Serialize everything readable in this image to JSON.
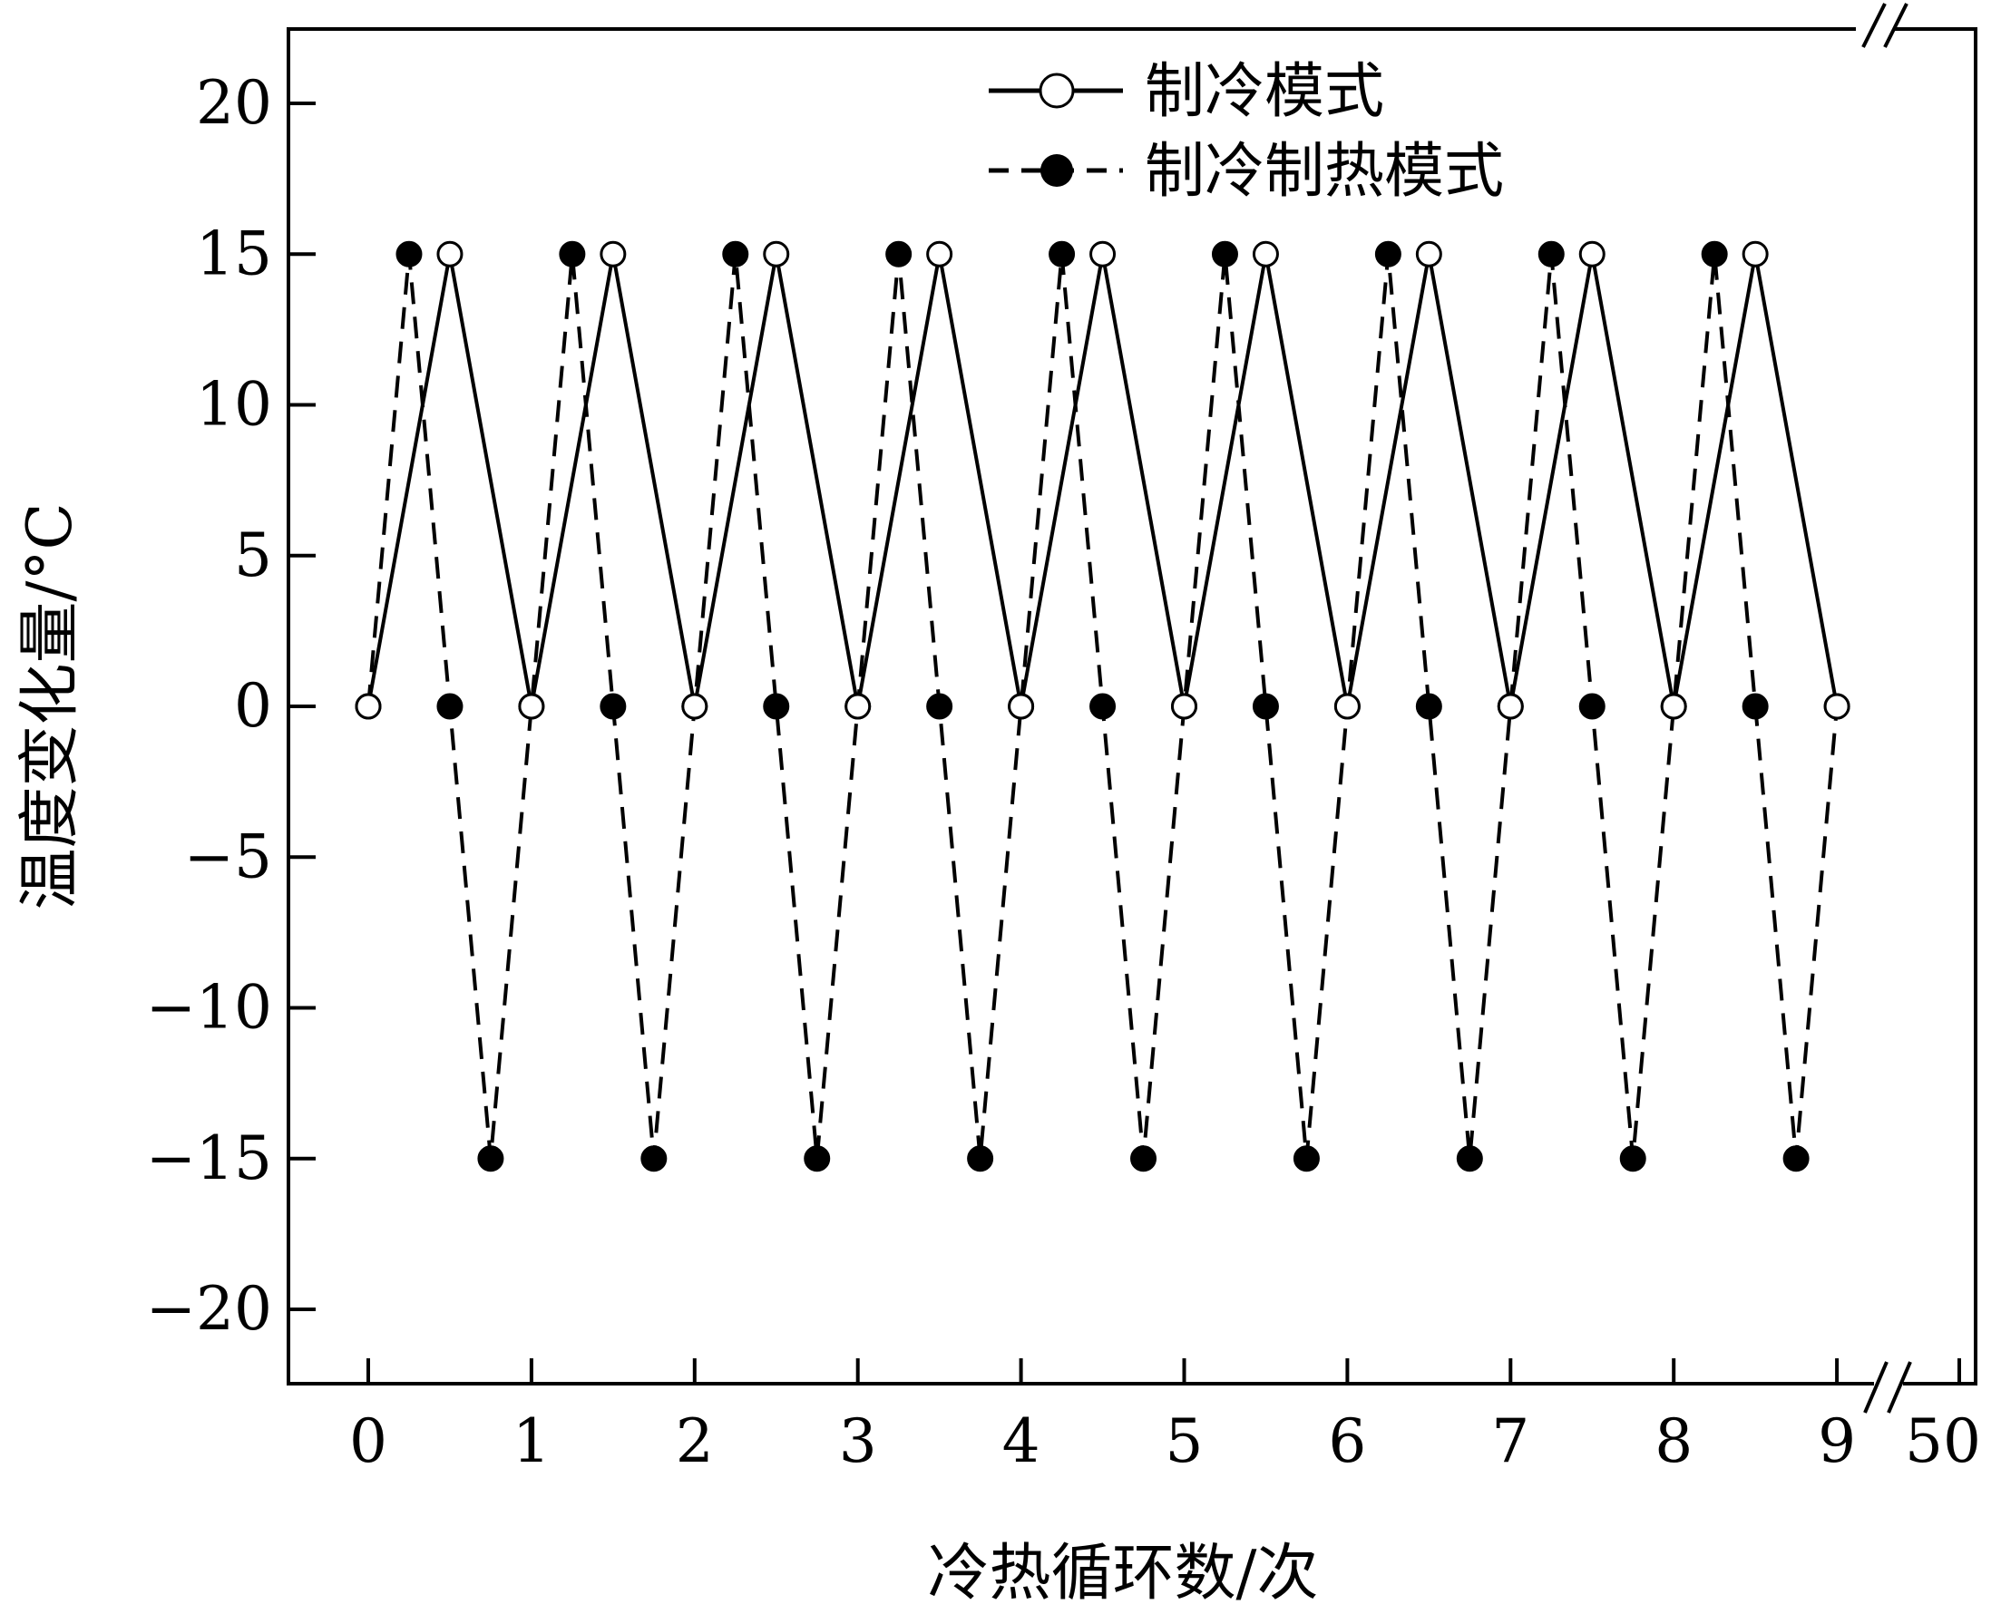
{
  "chart_data": {
    "type": "line",
    "xlabel": "冷热循环数/次",
    "ylabel": "温度变化量/°C",
    "x_ticks": [
      "0",
      "1",
      "2",
      "3",
      "4",
      "5",
      "6",
      "7",
      "8",
      "9",
      "50"
    ],
    "y_ticks": [
      "20",
      "15",
      "10",
      "5",
      "0",
      "−5",
      "−10",
      "−15",
      "−20"
    ],
    "y_tick_values": [
      20,
      15,
      10,
      5,
      0,
      -5,
      -10,
      -15,
      -20
    ],
    "ylim": [
      -22.5,
      22.5
    ],
    "xlim": [
      -0.5,
      9.5
    ],
    "axis_break": "between 9 and 50",
    "grid": false,
    "legend_position": "top-right",
    "series": [
      {
        "name": "制冷模式",
        "line_style": "solid",
        "marker": "open-circle",
        "x": [
          0,
          0.5,
          1,
          1.5,
          2,
          2.5,
          3,
          3.5,
          4,
          4.5,
          5,
          5.5,
          6,
          6.5,
          7,
          7.5,
          8,
          8.5,
          9
        ],
        "y": [
          0,
          15,
          0,
          15,
          0,
          15,
          0,
          15,
          0,
          15,
          0,
          15,
          0,
          15,
          0,
          15,
          0,
          15,
          0
        ]
      },
      {
        "name": "制冷制热模式",
        "line_style": "dashed",
        "marker": "filled-circle",
        "x": [
          0,
          0.25,
          0.5,
          0.75,
          1,
          1.25,
          1.5,
          1.75,
          2,
          2.25,
          2.5,
          2.75,
          3,
          3.25,
          3.5,
          3.75,
          4,
          4.25,
          4.5,
          4.75,
          5,
          5.25,
          5.5,
          5.75,
          6,
          6.25,
          6.5,
          6.75,
          7,
          7.25,
          7.5,
          7.75,
          8,
          8.25,
          8.5,
          8.75,
          9
        ],
        "y": [
          0,
          15,
          0,
          -15,
          0,
          15,
          0,
          -15,
          0,
          15,
          0,
          -15,
          0,
          15,
          0,
          -15,
          0,
          15,
          0,
          -15,
          0,
          15,
          0,
          -15,
          0,
          15,
          0,
          -15,
          0,
          15,
          0,
          -15,
          0,
          15,
          0,
          -15,
          0
        ]
      }
    ]
  }
}
